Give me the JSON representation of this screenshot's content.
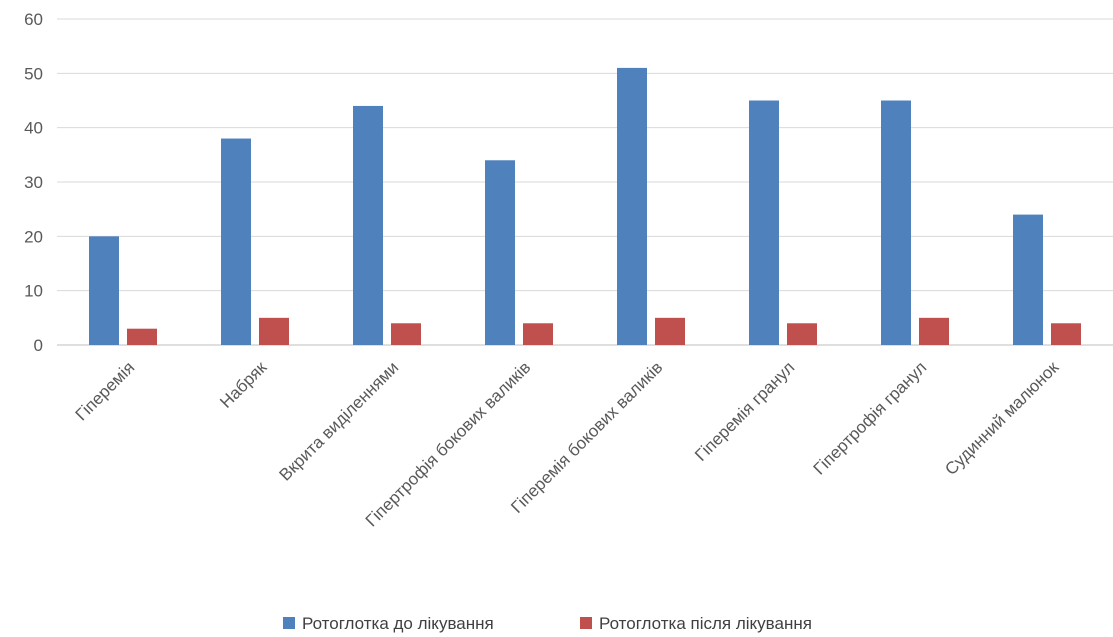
{
  "chart_data": {
    "type": "bar",
    "title": "",
    "xlabel": "",
    "ylabel": "",
    "ylim": [
      0,
      60
    ],
    "yticks": [
      0,
      10,
      20,
      30,
      40,
      50,
      60
    ],
    "grid": true,
    "legend_position": "bottom",
    "categories": [
      "Гіперемія",
      "Набряк",
      "Вкрита виділеннями",
      "Гіпертрофія бокових валиків",
      "Гіперемія бокових валиків",
      "Гіперемія гранул",
      "Гіпертрофія гранул",
      "Судинний малюнок"
    ],
    "series": [
      {
        "name": "Ротоглотка до лікування",
        "color": "#4f81bd",
        "values": [
          20,
          38,
          44,
          34,
          51,
          45,
          45,
          24
        ]
      },
      {
        "name": "Ротоглотка після лікування",
        "color": "#c0504d",
        "values": [
          3,
          5,
          4,
          4,
          5,
          4,
          5,
          4
        ]
      }
    ]
  }
}
